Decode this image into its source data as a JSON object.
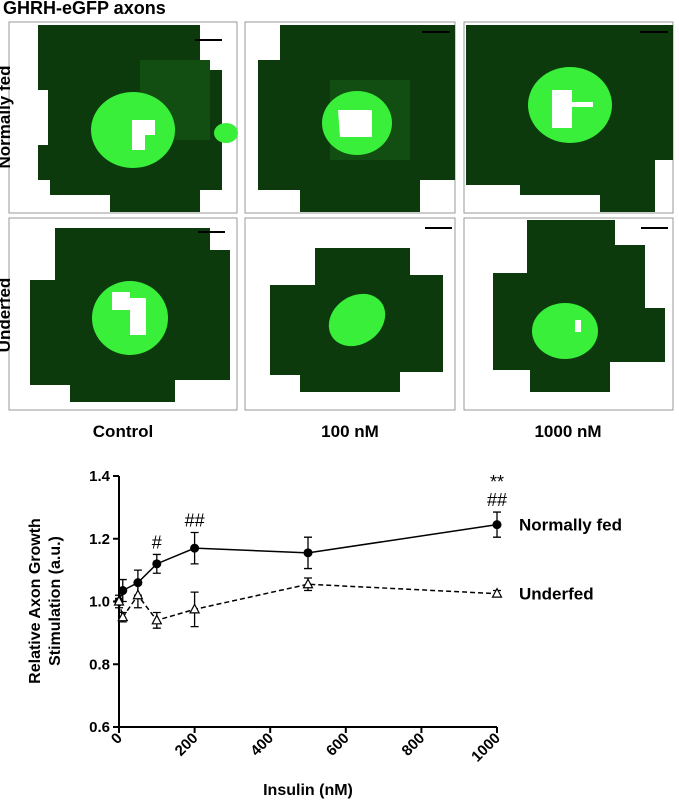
{
  "figure": {
    "title": "GHRH-eGFP axons",
    "row_labels": [
      "Normally fed",
      "Underfed"
    ],
    "column_labels": [
      "Control",
      "100 nM",
      "1000 nM"
    ]
  },
  "chart_data": {
    "type": "line",
    "ylabel": [
      "Relative Axon Growth",
      "Stimulation (a.u.)"
    ],
    "xlabel": "Insulin (nM)",
    "x": [
      0,
      10,
      50,
      100,
      200,
      500,
      1000
    ],
    "series": [
      {
        "name": "Normally fed",
        "color": "#000000",
        "marker": "circle",
        "dash": false,
        "values": [
          1.0,
          1.035,
          1.06,
          1.12,
          1.17,
          1.155,
          1.245
        ],
        "errors": [
          0.02,
          0.035,
          0.04,
          0.03,
          0.05,
          0.05,
          0.04
        ]
      },
      {
        "name": "Underfed",
        "color": "#000000",
        "marker": "triangle",
        "dash": true,
        "values": [
          1.0,
          0.95,
          1.02,
          0.94,
          0.975,
          1.055,
          1.025
        ],
        "errors": [
          0.01,
          0.015,
          0.04,
          0.025,
          0.055,
          0.02,
          0.01
        ]
      }
    ],
    "annotations": [
      {
        "text": "#",
        "x": 100
      },
      {
        "text": "##",
        "x": 200
      },
      {
        "text": "##",
        "x": 1000
      },
      {
        "text": "**",
        "x": 1000
      }
    ],
    "xlim": [
      0,
      1000
    ],
    "xticks": [
      0,
      200,
      400,
      600,
      800,
      1000
    ],
    "ylim": [
      0.6,
      1.4
    ],
    "yticks": [
      0.6,
      0.8,
      {
        "value": 1,
        "label": "1.0"
      },
      1.2,
      1.4
    ]
  }
}
